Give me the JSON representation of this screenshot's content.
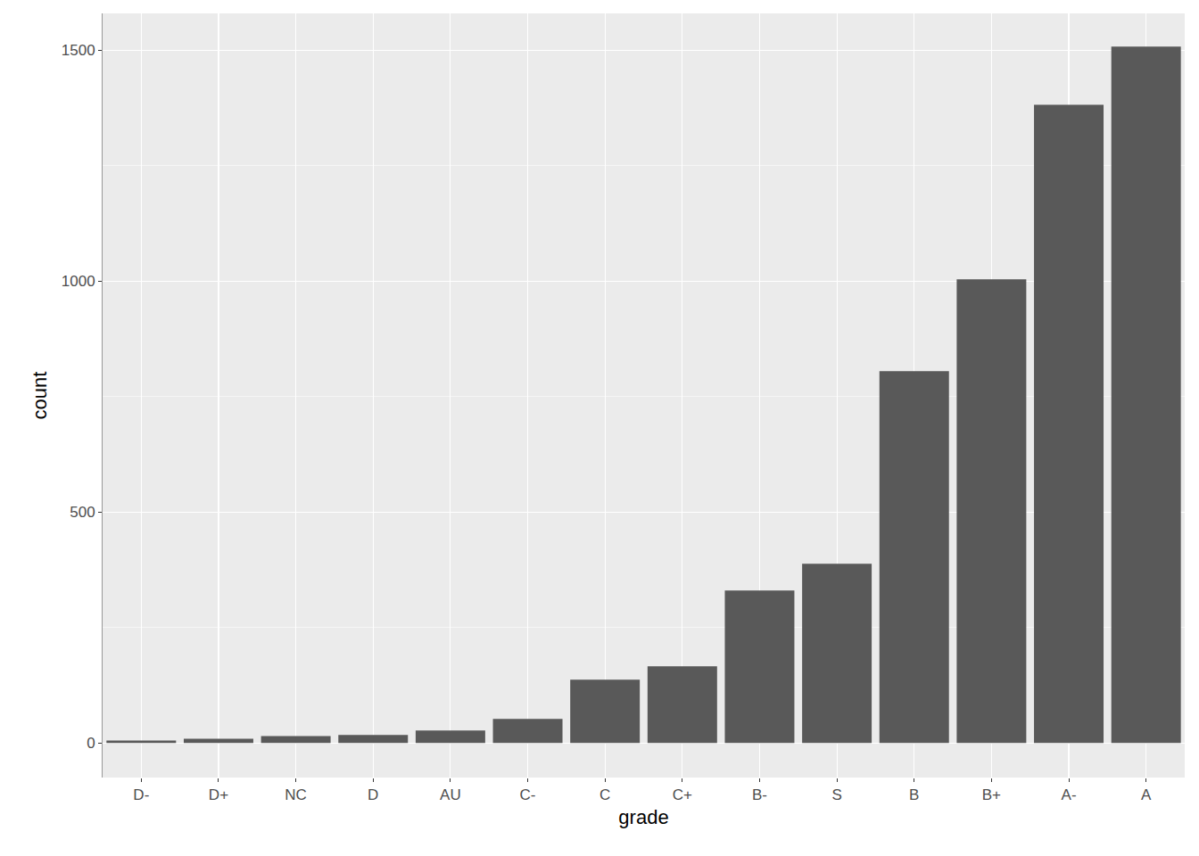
{
  "chart_data": {
    "type": "bar",
    "xlabel": "grade",
    "ylabel": "count",
    "categories": [
      "D-",
      "D+",
      "NC",
      "D",
      "AU",
      "C-",
      "C",
      "C+",
      "B-",
      "S",
      "B",
      "B+",
      "A-",
      "A"
    ],
    "values": [
      5,
      9,
      15,
      17,
      27,
      52,
      137,
      166,
      330,
      388,
      805,
      1004,
      1382,
      1508
    ],
    "color": "#595959",
    "ylim": [
      -75,
      1580
    ],
    "yticks": [
      0,
      500,
      1000,
      1500
    ],
    "grid": true
  }
}
